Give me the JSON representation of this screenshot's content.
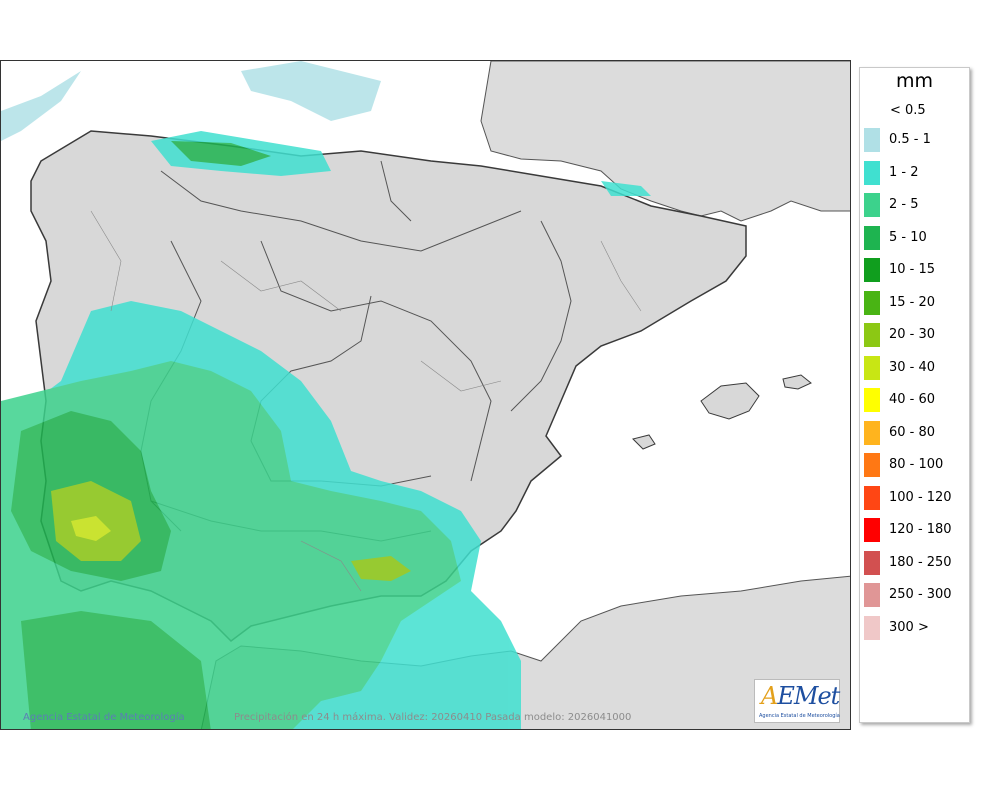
{
  "map": {
    "credit": "Agencia Estatal de Meteorología",
    "validity_line": "Precipitación en 24 h máxima. Validez: 20260410 Pasada modelo: 2026041000",
    "logo": {
      "text": "AEMet",
      "subtitle": "Agencia Estatal de Meteorología"
    }
  },
  "legend": {
    "title": "mm",
    "first_label": "< 0.5",
    "items": [
      {
        "label": "0.5 - 1",
        "color": "#b0e0e6"
      },
      {
        "label": "1 - 2",
        "color": "#40e0d0"
      },
      {
        "label": "2 - 5",
        "color": "#3cd28c"
      },
      {
        "label": "5 - 10",
        "color": "#1eb450"
      },
      {
        "label": "10 - 15",
        "color": "#109e1e"
      },
      {
        "label": "15 - 20",
        "color": "#49b414"
      },
      {
        "label": "20 - 30",
        "color": "#8cc814"
      },
      {
        "label": "30 - 40",
        "color": "#c8e614"
      },
      {
        "label": "40 - 60",
        "color": "#ffff00"
      },
      {
        "label": "60 - 80",
        "color": "#ffb41e"
      },
      {
        "label": "80 - 100",
        "color": "#ff7814"
      },
      {
        "label": "100 - 120",
        "color": "#ff4614"
      },
      {
        "label": "120 - 180",
        "color": "#ff0000"
      },
      {
        "label": "180 - 250",
        "color": "#d25050"
      },
      {
        "label": "250 - 300",
        "color": "#e09696"
      },
      {
        "label": "300 >",
        "color": "#f0c8c8"
      }
    ]
  }
}
